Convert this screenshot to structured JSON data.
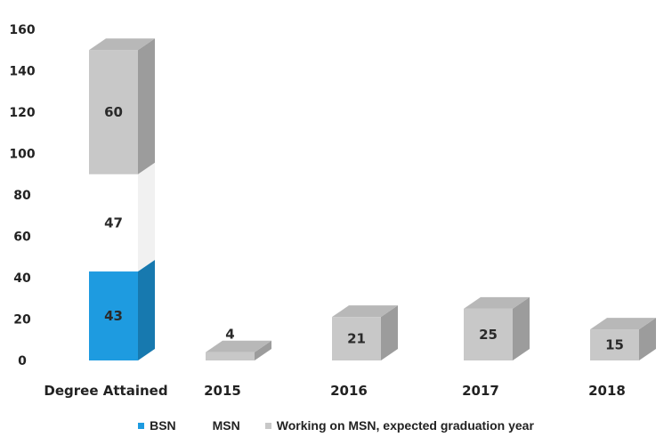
{
  "chart_data": {
    "type": "bar",
    "subtype": "stacked-3d",
    "title": "",
    "xlabel": "",
    "ylabel": "",
    "ylim": [
      0,
      160
    ],
    "yticks": [
      0,
      20,
      40,
      60,
      80,
      100,
      120,
      140,
      160
    ],
    "categories": [
      "Degree Attained",
      "2015",
      "2016",
      "2017",
      "2018"
    ],
    "series": [
      {
        "name": "BSN",
        "color": "#1e9be0",
        "values": [
          43,
          null,
          null,
          null,
          null
        ]
      },
      {
        "name": "MSN",
        "color": "#ffffff",
        "values": [
          47,
          null,
          null,
          null,
          null
        ]
      },
      {
        "name": "Working on MSN, expected graduation year",
        "color": "#c8c8c8",
        "values": [
          60,
          4,
          21,
          25,
          15
        ]
      }
    ],
    "data_labels": [
      {
        "category": "Degree Attained",
        "series": "BSN",
        "text": "43"
      },
      {
        "category": "Degree Attained",
        "series": "MSN",
        "text": "47"
      },
      {
        "category": "Degree Attained",
        "series": "Working on MSN, expected graduation year",
        "text": "60"
      },
      {
        "category": "2015",
        "series": "Working on MSN, expected graduation year",
        "text": "4"
      },
      {
        "category": "2016",
        "series": "Working on MSN, expected graduation year",
        "text": "21"
      },
      {
        "category": "2017",
        "series": "Working on MSN, expected graduation year",
        "text": "25"
      },
      {
        "category": "2018",
        "series": "Working on MSN, expected graduation year",
        "text": "15"
      }
    ],
    "grid": false,
    "legend": "bottom"
  }
}
